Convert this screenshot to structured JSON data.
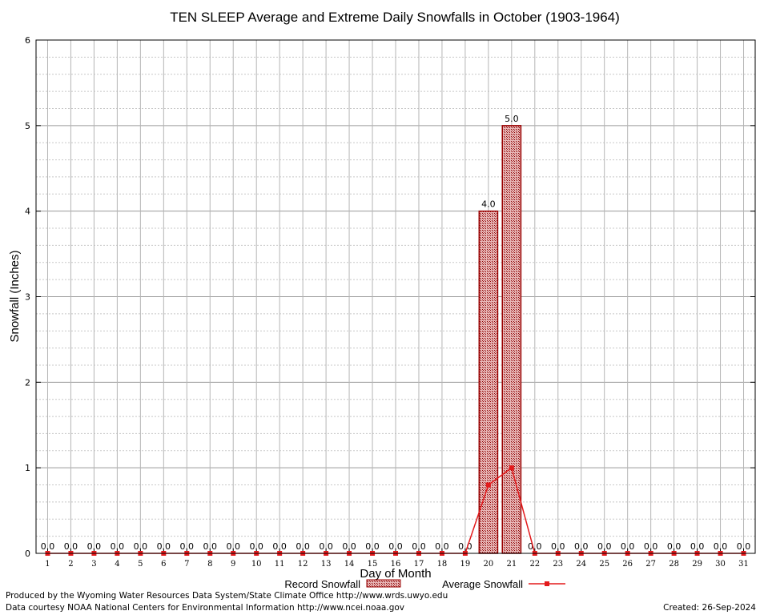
{
  "chart_data": {
    "type": "bar",
    "title": "TEN SLEEP Average and Extreme Daily Snowfalls in October (1903-1964)",
    "xlabel": "Day of Month",
    "ylabel": "Snowfall (Inches)",
    "ylim": [
      0,
      6
    ],
    "yticks": [
      "0",
      "1",
      "2",
      "3",
      "4",
      "5",
      "6"
    ],
    "categories": [
      "1",
      "2",
      "3",
      "4",
      "5",
      "6",
      "7",
      "8",
      "9",
      "10",
      "11",
      "12",
      "13",
      "14",
      "15",
      "16",
      "17",
      "18",
      "19",
      "20",
      "21",
      "22",
      "23",
      "24",
      "25",
      "26",
      "27",
      "28",
      "29",
      "30",
      "31"
    ],
    "series": [
      {
        "name": "Record Snowfall",
        "kind": "bar",
        "color": "#990000",
        "values": [
          0,
          0,
          0,
          0,
          0,
          0,
          0,
          0,
          0,
          0,
          0,
          0,
          0,
          0,
          0,
          0,
          0,
          0,
          0,
          4.0,
          5.0,
          0,
          0,
          0,
          0,
          0,
          0,
          0,
          0,
          0,
          0
        ],
        "labels": [
          "0.0",
          "0.0",
          "0.0",
          "0.0",
          "0.0",
          "0.0",
          "0.0",
          "0.0",
          "0.0",
          "0.0",
          "0.0",
          "0.0",
          "0.0",
          "0.0",
          "0.0",
          "0.0",
          "0.0",
          "0.0",
          "0.0",
          "4.0",
          "5.0",
          "0.0",
          "0.0",
          "0.0",
          "0.0",
          "0.0",
          "0.0",
          "0.0",
          "0.0",
          "0.0",
          "0.0"
        ]
      },
      {
        "name": "Average Snowfall",
        "kind": "line",
        "color": "#e31a1c",
        "values": [
          0,
          0,
          0,
          0,
          0,
          0,
          0,
          0,
          0,
          0,
          0,
          0,
          0,
          0,
          0,
          0,
          0,
          0,
          0,
          0.8,
          1.0,
          0,
          0,
          0,
          0,
          0,
          0,
          0,
          0,
          0,
          0
        ]
      }
    ],
    "grid": true,
    "legend_position": "bottom"
  },
  "footer": {
    "produced_by": "Produced by the Wyoming Water Resources Data System/State Climate Office http://www.wrds.uwyo.edu",
    "data_courtesy": "Data courtesy NOAA National Centers for Environmental Information http://www.ncei.noaa.gov",
    "created": "Created:  26-Sep-2024"
  }
}
